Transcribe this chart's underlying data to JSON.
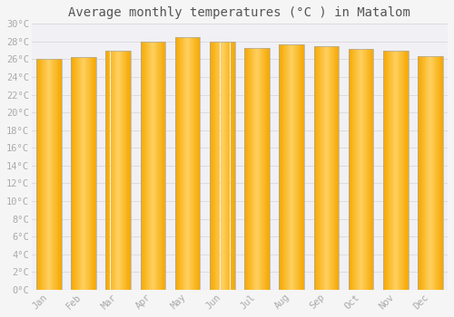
{
  "title": "Average monthly temperatures (°C ) in Matalom",
  "months": [
    "Jan",
    "Feb",
    "Mar",
    "Apr",
    "May",
    "Jun",
    "Jul",
    "Aug",
    "Sep",
    "Oct",
    "Nov",
    "Dec"
  ],
  "temperatures": [
    26.0,
    26.2,
    27.0,
    28.0,
    28.5,
    28.0,
    27.3,
    27.7,
    27.5,
    27.2,
    27.0,
    26.4
  ],
  "ylim": [
    0,
    30
  ],
  "yticks": [
    0,
    2,
    4,
    6,
    8,
    10,
    12,
    14,
    16,
    18,
    20,
    22,
    24,
    26,
    28,
    30
  ],
  "bar_color_center": "#FFC125",
  "bar_color_edge": "#F5A800",
  "bar_edge_color": "#999999",
  "background_color": "#f5f5f5",
  "plot_bg_color": "#f0f0f5",
  "grid_color": "#dddddd",
  "tick_label_color": "#aaaaaa",
  "title_color": "#555555",
  "title_fontsize": 10,
  "tick_fontsize": 7.5
}
